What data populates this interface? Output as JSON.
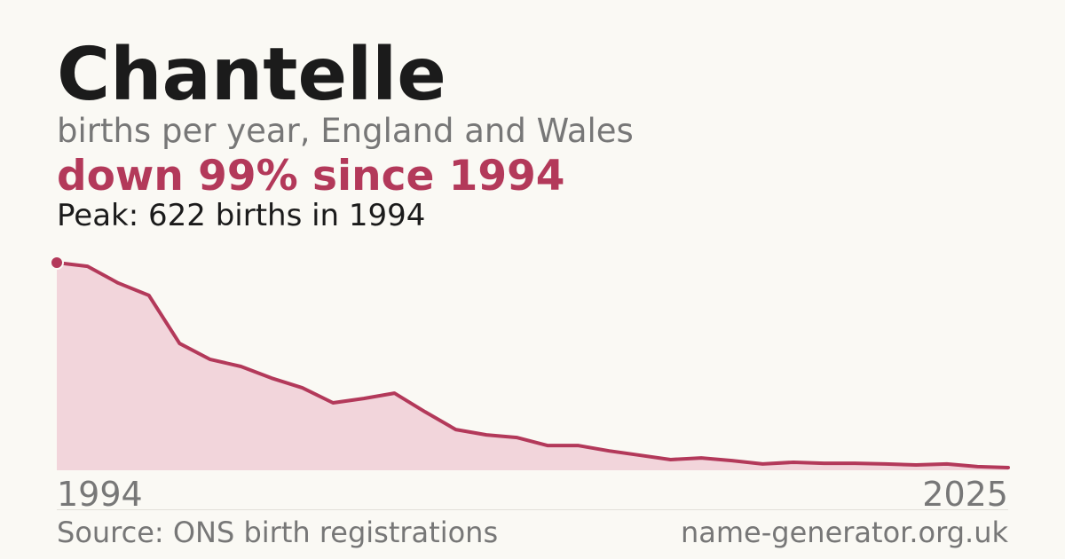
{
  "chart_data": {
    "type": "area",
    "title": "Chantelle",
    "subtitle": "births per year, England and Wales",
    "headline": "down 99% since 1994",
    "annotation": "Peak: 622 births in 1994",
    "source": "Source: ONS birth registrations",
    "site": "name-generator.org.uk",
    "x": [
      1994,
      1995,
      1996,
      1997,
      1998,
      1999,
      2000,
      2001,
      2002,
      2003,
      2004,
      2005,
      2006,
      2007,
      2008,
      2009,
      2010,
      2011,
      2012,
      2013,
      2014,
      2015,
      2016,
      2017,
      2018,
      2019,
      2020,
      2021,
      2022,
      2023,
      2024,
      2025
    ],
    "values": [
      622,
      611,
      561,
      524,
      380,
      332,
      311,
      276,
      247,
      202,
      215,
      231,
      175,
      122,
      106,
      98,
      74,
      74,
      58,
      45,
      32,
      37,
      29,
      19,
      24,
      21,
      21,
      19,
      16,
      19,
      11,
      8
    ],
    "xlim": [
      1994,
      2025
    ],
    "ylim": [
      0,
      622
    ],
    "color": "#b3395a",
    "fill_color": "#f2d5db",
    "peak_index": 0
  }
}
